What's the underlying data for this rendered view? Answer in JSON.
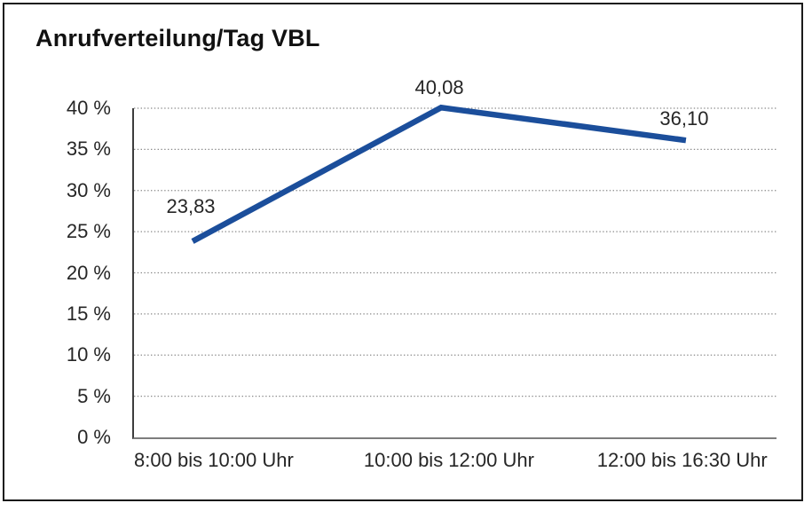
{
  "title": "Anrufverteilung/Tag VBL",
  "colors": {
    "line": "#1B4E9B",
    "grid": "#8a8a8a",
    "y_axis": "#3d3d3d",
    "x_axis": "#7d7d7d",
    "border": "#1a1a1a",
    "text": "#262626"
  },
  "chart_data": {
    "type": "line",
    "title": "Anrufverteilung/Tag VBL",
    "categories": [
      "8:00 bis 10:00 Uhr",
      "10:00 bis 12:00 Uhr",
      "12:00 bis 16:30 Uhr"
    ],
    "series": [
      {
        "name": "Anrufverteilung/Tag VBL",
        "values": [
          23.83,
          40.08,
          36.1
        ],
        "value_labels": [
          "23,83",
          "40,08",
          "36,10"
        ]
      }
    ],
    "xlabel": "",
    "ylabel": "",
    "ylim": [
      0,
      40
    ],
    "yticks": [
      0,
      5,
      10,
      15,
      20,
      25,
      30,
      35,
      40
    ],
    "ytick_labels": [
      "0 %",
      "5 %",
      "10 %",
      "15 %",
      "20 %",
      "25 %",
      "30 %",
      "35 %",
      "40 %"
    ],
    "grid": "horizontal-dotted",
    "legend": "none",
    "markers": "none",
    "data_labels": "above-points"
  }
}
